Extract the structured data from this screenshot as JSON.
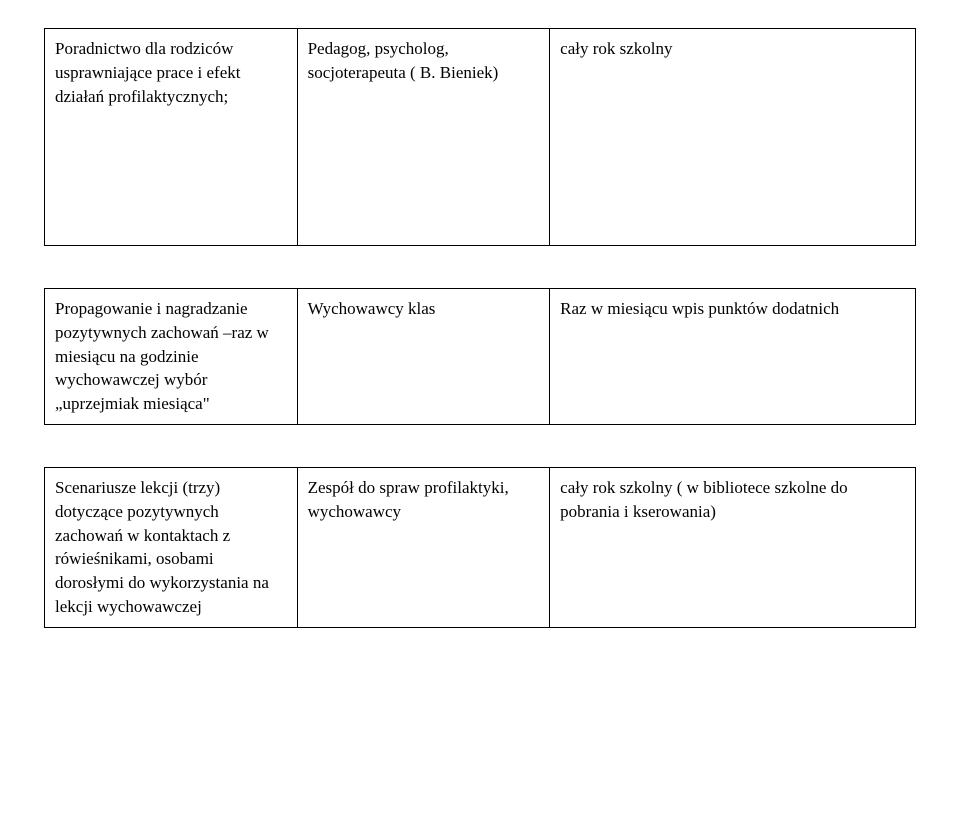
{
  "rows": [
    {
      "c1": "Poradnictwo dla rodziców usprawniające prace i efekt działań profilaktycznych;",
      "c2": "Pedagog, psycholog, socjoterapeuta ( B. Bieniek)",
      "c3": "cały rok szkolny"
    },
    {
      "c1": "Propagowanie i nagradzanie pozytywnych zachowań –raz w miesiącu na godzinie wychowawczej wybór „uprzejmiak  miesiąca\"",
      "c2": "Wychowawcy klas",
      "c3": "Raz w miesiącu wpis punktów dodatnich"
    },
    {
      "c1": "Scenariusze lekcji (trzy) dotyczące pozytywnych zachowań w kontaktach z rówieśnikami, osobami dorosłymi do wykorzystania na lekcji wychowawczej",
      "c2": "Zespół do spraw profilaktyki, wychowawcy",
      "c3": "cały rok szkolny ( w bibliotece szkolne do pobrania i kserowania)"
    }
  ]
}
